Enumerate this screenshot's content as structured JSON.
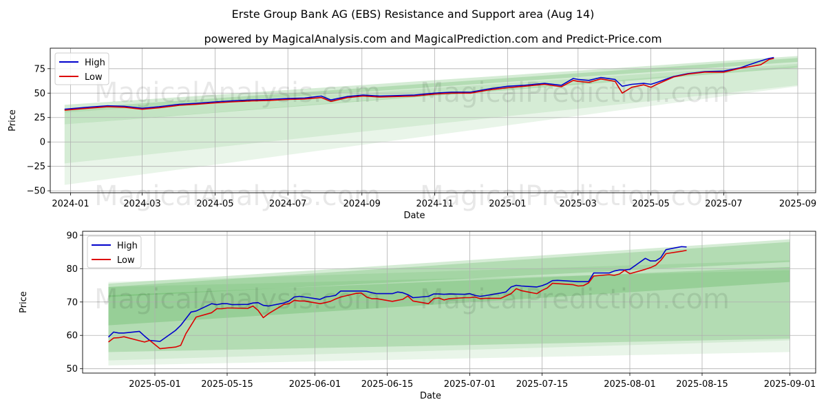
{
  "title": "Erste Group Bank AG (EBS) Resistance and Support area (Aug 14)",
  "subtitle": "powered by MagicalAnalysis.com and MagicalPrediction.com and Predict-Price.com",
  "watermarks": [
    "MagicalAnalysis.com",
    "MagicalPrediction.com"
  ],
  "colors": {
    "high": "#0000cc",
    "low": "#dd0000",
    "band": "#2ca02c",
    "grid": "#b0b0b0"
  },
  "chart_data": [
    {
      "type": "line",
      "xlabel": "Date",
      "ylabel": "Price",
      "xlim": [
        "2023-12-15",
        "2025-09-16"
      ],
      "ylim": [
        -52,
        96
      ],
      "x_ticks": [
        "2024-01-01",
        "2024-03-01",
        "2024-05-01",
        "2024-07-01",
        "2024-09-01",
        "2024-11-01",
        "2025-01-01",
        "2025-03-01",
        "2025-05-01",
        "2025-07-01",
        "2025-09-01"
      ],
      "x_tick_labels": [
        "2024-01",
        "2024-03",
        "2024-05",
        "2024-07",
        "2024-09",
        "2024-11",
        "2025-01",
        "2025-03",
        "2025-05",
        "2025-07",
        "2025-09"
      ],
      "y_ticks": [
        -50,
        -25,
        0,
        25,
        50,
        75
      ],
      "legend": {
        "position": "top-left",
        "entries": [
          "High",
          "Low"
        ]
      },
      "grid": true,
      "series": [
        {
          "name": "High",
          "x": [
            "2023-12-27",
            "2024-01-15",
            "2024-02-01",
            "2024-02-15",
            "2024-03-01",
            "2024-03-15",
            "2024-04-01",
            "2024-04-15",
            "2024-05-01",
            "2024-05-15",
            "2024-06-01",
            "2024-06-15",
            "2024-07-01",
            "2024-07-15",
            "2024-07-29",
            "2024-08-06",
            "2024-08-20",
            "2024-09-02",
            "2024-09-16",
            "2024-10-01",
            "2024-10-15",
            "2024-11-01",
            "2024-11-15",
            "2024-12-01",
            "2024-12-15",
            "2025-01-01",
            "2025-01-15",
            "2025-02-01",
            "2025-02-15",
            "2025-02-25",
            "2025-03-01",
            "2025-03-10",
            "2025-03-20",
            "2025-04-01",
            "2025-04-07",
            "2025-04-15",
            "2025-04-25",
            "2025-05-01",
            "2025-05-06",
            "2025-05-20",
            "2025-06-01",
            "2025-06-15",
            "2025-07-01",
            "2025-07-15",
            "2025-08-01",
            "2025-08-08",
            "2025-08-12"
          ],
          "values": [
            33.5,
            35.5,
            37,
            36.5,
            34.5,
            36,
            38.5,
            39.5,
            41,
            42,
            43,
            43.5,
            44.5,
            45,
            47,
            43,
            46.5,
            48,
            47,
            47.5,
            48,
            50,
            51,
            51,
            54,
            57,
            58,
            60,
            58,
            65,
            64,
            63,
            66,
            64,
            57,
            59,
            60,
            59,
            61,
            67,
            70,
            72,
            72.5,
            76,
            83,
            85.5,
            86.5
          ]
        },
        {
          "name": "Low",
          "x": [
            "2023-12-27",
            "2024-01-15",
            "2024-02-01",
            "2024-02-15",
            "2024-03-01",
            "2024-03-15",
            "2024-04-01",
            "2024-04-15",
            "2024-05-01",
            "2024-05-15",
            "2024-06-01",
            "2024-06-15",
            "2024-07-01",
            "2024-07-15",
            "2024-07-29",
            "2024-08-06",
            "2024-08-20",
            "2024-09-02",
            "2024-09-16",
            "2024-10-01",
            "2024-10-15",
            "2024-11-01",
            "2024-11-15",
            "2024-12-01",
            "2024-12-15",
            "2025-01-01",
            "2025-01-15",
            "2025-02-01",
            "2025-02-15",
            "2025-02-25",
            "2025-03-01",
            "2025-03-10",
            "2025-03-20",
            "2025-04-01",
            "2025-04-07",
            "2025-04-15",
            "2025-04-25",
            "2025-05-01",
            "2025-05-06",
            "2025-05-20",
            "2025-06-01",
            "2025-06-15",
            "2025-07-01",
            "2025-07-15",
            "2025-08-01",
            "2025-08-08",
            "2025-08-12"
          ],
          "values": [
            32.5,
            34.5,
            36,
            35.5,
            33.5,
            35,
            37.5,
            38.5,
            40,
            41,
            42,
            42.5,
            43.5,
            44,
            45.5,
            41.5,
            45.5,
            47,
            46,
            46.5,
            47,
            49,
            50,
            50,
            53,
            55.5,
            57,
            59,
            56.5,
            63,
            62,
            61,
            64.5,
            62,
            50,
            56,
            58.5,
            56,
            59,
            66.5,
            69.5,
            71.5,
            71.5,
            75.5,
            79,
            84.5,
            85.5
          ]
        }
      ],
      "bands": [
        {
          "x": [
            "2023-12-27",
            "2025-09-01"
          ],
          "lower": [
            30,
            82
          ],
          "upper": [
            38,
            88
          ],
          "opacity": "dark"
        },
        {
          "x": [
            "2023-12-27",
            "2025-09-01"
          ],
          "lower": [
            18,
            76
          ],
          "upper": [
            34,
            86
          ],
          "opacity": "dark"
        },
        {
          "x": [
            "2023-12-27",
            "2025-09-01"
          ],
          "lower": [
            -22,
            58
          ],
          "upper": [
            30,
            80
          ],
          "opacity": "light"
        },
        {
          "x": [
            "2023-12-27",
            "2025-09-01"
          ],
          "lower": [
            -44,
            57
          ],
          "upper": [
            18,
            78
          ],
          "opacity": "light"
        }
      ]
    },
    {
      "type": "line",
      "xlabel": "Date",
      "ylabel": "Price",
      "xlim": [
        "2025-04-17",
        "2025-09-06"
      ],
      "ylim": [
        48.7,
        91.2
      ],
      "x_ticks": [
        "2025-05-01",
        "2025-05-15",
        "2025-06-01",
        "2025-06-15",
        "2025-07-01",
        "2025-07-15",
        "2025-08-01",
        "2025-08-15",
        "2025-09-01"
      ],
      "x_tick_labels": [
        "2025-05-01",
        "2025-05-15",
        "2025-06-01",
        "2025-06-15",
        "2025-07-01",
        "2025-07-15",
        "2025-08-01",
        "2025-08-15",
        "2025-09-01"
      ],
      "y_ticks": [
        50,
        60,
        70,
        80,
        90
      ],
      "legend": {
        "position": "top-left",
        "entries": [
          "High",
          "Low"
        ]
      },
      "grid": true,
      "series": [
        {
          "name": "High",
          "x": [
            "2025-04-22",
            "2025-04-23",
            "2025-04-24",
            "2025-04-25",
            "2025-04-28",
            "2025-04-29",
            "2025-04-30",
            "2025-05-02",
            "2025-05-05",
            "2025-05-06",
            "2025-05-07",
            "2025-05-08",
            "2025-05-09",
            "2025-05-12",
            "2025-05-13",
            "2025-05-14",
            "2025-05-15",
            "2025-05-16",
            "2025-05-19",
            "2025-05-20",
            "2025-05-21",
            "2025-05-22",
            "2025-05-23",
            "2025-05-26",
            "2025-05-27",
            "2025-05-28",
            "2025-05-29",
            "2025-05-30",
            "2025-06-02",
            "2025-06-03",
            "2025-06-04",
            "2025-06-05",
            "2025-06-06",
            "2025-06-09",
            "2025-06-10",
            "2025-06-11",
            "2025-06-12",
            "2025-06-13",
            "2025-06-16",
            "2025-06-17",
            "2025-06-18",
            "2025-06-19",
            "2025-06-20",
            "2025-06-23",
            "2025-06-24",
            "2025-06-25",
            "2025-06-26",
            "2025-06-27",
            "2025-06-30",
            "2025-07-01",
            "2025-07-02",
            "2025-07-03",
            "2025-07-04",
            "2025-07-07",
            "2025-07-08",
            "2025-07-09",
            "2025-07-10",
            "2025-07-11",
            "2025-07-14",
            "2025-07-15",
            "2025-07-16",
            "2025-07-17",
            "2025-07-18",
            "2025-07-21",
            "2025-07-22",
            "2025-07-23",
            "2025-07-24",
            "2025-07-25",
            "2025-07-28",
            "2025-07-29",
            "2025-07-30",
            "2025-07-31",
            "2025-08-01",
            "2025-08-04",
            "2025-08-05",
            "2025-08-06",
            "2025-08-07",
            "2025-08-08",
            "2025-08-11",
            "2025-08-12"
          ],
          "values": [
            59.5,
            61,
            60.7,
            60.7,
            61.2,
            59.8,
            58.5,
            58.2,
            61.5,
            63,
            65,
            67,
            67.3,
            69.5,
            69.2,
            69.5,
            69.5,
            69.2,
            69.3,
            69.7,
            69.8,
            69,
            68.8,
            69.7,
            70.3,
            71.5,
            71.7,
            71.5,
            70.8,
            71.5,
            71.7,
            72,
            73.3,
            73.3,
            73.3,
            73.2,
            72.8,
            72.5,
            72.5,
            73,
            72.8,
            72.2,
            71.3,
            71.7,
            72.4,
            72.4,
            72.3,
            72.4,
            72.3,
            72.5,
            72,
            71.7,
            71.9,
            72.7,
            73,
            74.5,
            75,
            74.8,
            74.5,
            74.9,
            75.5,
            76.4,
            76.5,
            76.2,
            76.1,
            76.1,
            76.1,
            78.7,
            78.7,
            79.3,
            79.6,
            79.6,
            79.8,
            83.1,
            82.3,
            82.3,
            83.3,
            85.7,
            86.6,
            86.5
          ]
        },
        {
          "name": "Low",
          "x": [
            "2025-04-22",
            "2025-04-23",
            "2025-04-24",
            "2025-04-25",
            "2025-04-28",
            "2025-04-29",
            "2025-04-30",
            "2025-05-02",
            "2025-05-05",
            "2025-05-06",
            "2025-05-07",
            "2025-05-08",
            "2025-05-09",
            "2025-05-12",
            "2025-05-13",
            "2025-05-14",
            "2025-05-15",
            "2025-05-16",
            "2025-05-19",
            "2025-05-20",
            "2025-05-21",
            "2025-05-22",
            "2025-05-23",
            "2025-05-26",
            "2025-05-27",
            "2025-05-28",
            "2025-05-29",
            "2025-05-30",
            "2025-06-02",
            "2025-06-03",
            "2025-06-04",
            "2025-06-05",
            "2025-06-06",
            "2025-06-09",
            "2025-06-10",
            "2025-06-11",
            "2025-06-12",
            "2025-06-13",
            "2025-06-16",
            "2025-06-17",
            "2025-06-18",
            "2025-06-19",
            "2025-06-20",
            "2025-06-23",
            "2025-06-24",
            "2025-06-25",
            "2025-06-26",
            "2025-06-27",
            "2025-06-30",
            "2025-07-01",
            "2025-07-02",
            "2025-07-03",
            "2025-07-04",
            "2025-07-07",
            "2025-07-08",
            "2025-07-09",
            "2025-07-10",
            "2025-07-11",
            "2025-07-14",
            "2025-07-15",
            "2025-07-16",
            "2025-07-17",
            "2025-07-18",
            "2025-07-21",
            "2025-07-22",
            "2025-07-23",
            "2025-07-24",
            "2025-07-25",
            "2025-07-28",
            "2025-07-29",
            "2025-07-30",
            "2025-07-31",
            "2025-08-01",
            "2025-08-04",
            "2025-08-05",
            "2025-08-06",
            "2025-08-07",
            "2025-08-08",
            "2025-08-11",
            "2025-08-12"
          ],
          "values": [
            58,
            59.2,
            59.3,
            59.6,
            58.4,
            58,
            58.5,
            56,
            56.5,
            57,
            60.5,
            63,
            65.5,
            66.8,
            68,
            68,
            68.2,
            68.2,
            68.1,
            68.8,
            67.5,
            65.3,
            66.5,
            69.3,
            69.5,
            70.5,
            70.3,
            70.3,
            69.5,
            69.8,
            70.2,
            70.9,
            71.5,
            72.6,
            72.7,
            71.5,
            71,
            71,
            70.2,
            70.5,
            70.8,
            71.8,
            70.3,
            69.5,
            71,
            71.2,
            70.6,
            71,
            71.3,
            71.3,
            71.5,
            71,
            71.1,
            71.1,
            71.8,
            72.5,
            74,
            73.4,
            72.5,
            73.5,
            74.2,
            75.6,
            75.5,
            75.2,
            74.8,
            74.9,
            75.7,
            77.8,
            78.2,
            78,
            78.4,
            79.5,
            78.5,
            79.8,
            80.3,
            81,
            82.5,
            84.5,
            85.2,
            85.5
          ]
        }
      ],
      "bands": [
        {
          "x": [
            "2025-04-22",
            "2025-09-01"
          ],
          "lower": [
            71.5,
            82
          ],
          "upper": [
            75.5,
            88.8
          ],
          "opacity": "dark"
        },
        {
          "x": [
            "2025-04-22",
            "2025-09-01"
          ],
          "lower": [
            63,
            76
          ],
          "upper": [
            74.5,
            88
          ],
          "opacity": "dark"
        },
        {
          "x": [
            "2025-04-22",
            "2025-09-01"
          ],
          "lower": [
            55,
            59
          ],
          "upper": [
            72,
            80.5
          ],
          "opacity": "dark"
        },
        {
          "x": [
            "2025-04-22",
            "2025-09-01"
          ],
          "lower": [
            52.5,
            58.5
          ],
          "upper": [
            74.5,
            79.5
          ],
          "opacity": "light"
        },
        {
          "x": [
            "2025-04-22",
            "2025-09-01"
          ],
          "lower": [
            51,
            55
          ],
          "upper": [
            76,
            82.5
          ],
          "opacity": "light"
        }
      ]
    }
  ]
}
